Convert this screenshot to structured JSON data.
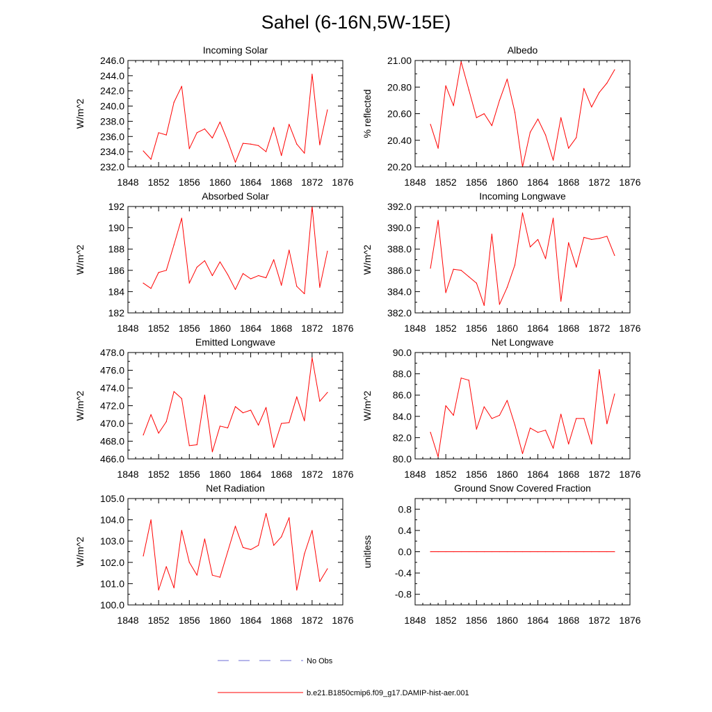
{
  "figure": {
    "title": "Sahel (6-16N,5W-15E)",
    "legend": [
      {
        "label": "No Obs",
        "style": "dashed",
        "color": "#6b6bd6"
      },
      {
        "label": "b.e21.B1850cmip6.f09_g17.DAMIP-hist-aer.001",
        "style": "solid",
        "color": "#ff0000"
      }
    ]
  },
  "chart_data": [
    {
      "type": "line",
      "title": "Incoming Solar",
      "ylabel": "W/m^2",
      "xlabel": "",
      "xlim": [
        1848,
        1876
      ],
      "xticks": [
        1848,
        1852,
        1856,
        1860,
        1864,
        1868,
        1872,
        1876
      ],
      "xtick_labels": [
        "1848",
        "1852",
        "1856",
        "1860",
        "1864",
        "1868",
        "1872",
        "1876"
      ],
      "ylim": [
        232,
        246
      ],
      "yticks": [
        232,
        234,
        236,
        238,
        240,
        242,
        244,
        246
      ],
      "ytick_labels": [
        "232.0",
        "234.0",
        "236.0",
        "238.0",
        "240.0",
        "242.0",
        "244.0",
        "246.0"
      ],
      "x": [
        1850,
        1851,
        1852,
        1853,
        1854,
        1855,
        1856,
        1857,
        1858,
        1859,
        1860,
        1861,
        1862,
        1863,
        1864,
        1865,
        1866,
        1867,
        1868,
        1869,
        1870,
        1871,
        1872,
        1873,
        1874
      ],
      "series": [
        {
          "color": "#ff0000",
          "values": [
            234.1,
            233.0,
            236.5,
            236.2,
            240.5,
            242.6,
            234.4,
            236.5,
            237.0,
            235.8,
            237.9,
            235.4,
            232.6,
            235.1,
            235.0,
            234.8,
            234.0,
            237.2,
            233.5,
            237.6,
            235.0,
            233.8,
            244.2,
            234.9,
            239.5
          ]
        }
      ],
      "grid": false
    },
    {
      "type": "line",
      "title": "Albedo",
      "ylabel": "% reflected",
      "xlabel": "",
      "xlim": [
        1848,
        1876
      ],
      "xticks": [
        1848,
        1852,
        1856,
        1860,
        1864,
        1868,
        1872,
        1876
      ],
      "xtick_labels": [
        "1848",
        "1852",
        "1856",
        "1860",
        "1864",
        "1868",
        "1872",
        "1876"
      ],
      "ylim": [
        20.2,
        21.0
      ],
      "yticks": [
        20.2,
        20.4,
        20.6,
        20.8,
        21.0
      ],
      "ytick_labels": [
        "20.20",
        "20.40",
        "20.60",
        "20.80",
        "21.00"
      ],
      "x": [
        1850,
        1851,
        1852,
        1853,
        1854,
        1855,
        1856,
        1857,
        1858,
        1859,
        1860,
        1861,
        1862,
        1863,
        1864,
        1865,
        1866,
        1867,
        1868,
        1869,
        1870,
        1871,
        1872,
        1873,
        1874
      ],
      "series": [
        {
          "color": "#ff0000",
          "values": [
            20.52,
            20.34,
            20.81,
            20.66,
            20.99,
            20.78,
            20.57,
            20.6,
            20.51,
            20.7,
            20.86,
            20.61,
            20.2,
            20.46,
            20.56,
            20.44,
            20.25,
            20.57,
            20.34,
            20.42,
            20.79,
            20.65,
            20.76,
            20.83,
            20.93
          ]
        }
      ],
      "grid": false
    },
    {
      "type": "line",
      "title": "Absorbed Solar",
      "ylabel": "W/m^2",
      "xlabel": "",
      "xlim": [
        1848,
        1876
      ],
      "xticks": [
        1848,
        1852,
        1856,
        1860,
        1864,
        1868,
        1872,
        1876
      ],
      "xtick_labels": [
        "1848",
        "1852",
        "1856",
        "1860",
        "1864",
        "1868",
        "1872",
        "1876"
      ],
      "ylim": [
        182,
        192
      ],
      "yticks": [
        182,
        184,
        186,
        188,
        190,
        192
      ],
      "ytick_labels": [
        "182",
        "184",
        "186",
        "188",
        "190",
        "192"
      ],
      "x": [
        1850,
        1851,
        1852,
        1853,
        1854,
        1855,
        1856,
        1857,
        1858,
        1859,
        1860,
        1861,
        1862,
        1863,
        1864,
        1865,
        1866,
        1867,
        1868,
        1869,
        1870,
        1871,
        1872,
        1873,
        1874
      ],
      "series": [
        {
          "color": "#ff0000",
          "values": [
            184.8,
            184.3,
            185.8,
            186.0,
            188.4,
            190.9,
            184.8,
            186.3,
            186.9,
            185.5,
            186.8,
            185.6,
            184.2,
            185.7,
            185.2,
            185.5,
            185.3,
            187.0,
            184.6,
            187.9,
            184.5,
            183.8,
            192.0,
            184.4,
            187.8
          ]
        }
      ],
      "grid": false
    },
    {
      "type": "line",
      "title": "Incoming Longwave",
      "ylabel": "W/m^2",
      "xlabel": "",
      "xlim": [
        1848,
        1876
      ],
      "xticks": [
        1848,
        1852,
        1856,
        1860,
        1864,
        1868,
        1872,
        1876
      ],
      "xtick_labels": [
        "1848",
        "1852",
        "1856",
        "1860",
        "1864",
        "1868",
        "1872",
        "1876"
      ],
      "ylim": [
        382,
        392
      ],
      "yticks": [
        382,
        384,
        386,
        388,
        390,
        392
      ],
      "ytick_labels": [
        "382.0",
        "384.0",
        "386.0",
        "388.0",
        "390.0",
        "392.0"
      ],
      "x": [
        1850,
        1851,
        1852,
        1853,
        1854,
        1855,
        1856,
        1857,
        1858,
        1859,
        1860,
        1861,
        1862,
        1863,
        1864,
        1865,
        1866,
        1867,
        1868,
        1869,
        1870,
        1871,
        1872,
        1873,
        1874
      ],
      "series": [
        {
          "color": "#ff0000",
          "values": [
            386.2,
            390.7,
            383.9,
            386.1,
            386.0,
            385.4,
            384.8,
            382.7,
            389.4,
            382.8,
            384.4,
            386.5,
            391.4,
            388.2,
            388.9,
            387.1,
            390.9,
            383.1,
            388.6,
            386.3,
            389.1,
            388.9,
            389.0,
            389.2,
            387.4
          ]
        }
      ],
      "grid": false
    },
    {
      "type": "line",
      "title": "Emitted Longwave",
      "ylabel": "W/m^2",
      "xlabel": "",
      "xlim": [
        1848,
        1876
      ],
      "xticks": [
        1848,
        1852,
        1856,
        1860,
        1864,
        1868,
        1872,
        1876
      ],
      "xtick_labels": [
        "1848",
        "1852",
        "1856",
        "1860",
        "1864",
        "1868",
        "1872",
        "1876"
      ],
      "ylim": [
        466,
        478
      ],
      "yticks": [
        466,
        468,
        470,
        472,
        474,
        476,
        478
      ],
      "ytick_labels": [
        "466.0",
        "468.0",
        "470.0",
        "472.0",
        "474.0",
        "476.0",
        "478.0"
      ],
      "x": [
        1850,
        1851,
        1852,
        1853,
        1854,
        1855,
        1856,
        1857,
        1858,
        1859,
        1860,
        1861,
        1862,
        1863,
        1864,
        1865,
        1866,
        1867,
        1868,
        1869,
        1870,
        1871,
        1872,
        1873,
        1874
      ],
      "series": [
        {
          "color": "#ff0000",
          "values": [
            468.7,
            471.0,
            468.9,
            470.2,
            473.6,
            472.8,
            467.5,
            467.6,
            473.2,
            466.8,
            469.7,
            469.5,
            471.9,
            471.2,
            471.5,
            469.8,
            471.8,
            467.3,
            470.0,
            470.1,
            473.0,
            470.3,
            477.4,
            472.5,
            473.5
          ]
        }
      ],
      "grid": false
    },
    {
      "type": "line",
      "title": "Net Longwave",
      "ylabel": "W/m^2",
      "xlabel": "",
      "xlim": [
        1848,
        1876
      ],
      "xticks": [
        1848,
        1852,
        1856,
        1860,
        1864,
        1868,
        1872,
        1876
      ],
      "xtick_labels": [
        "1848",
        "1852",
        "1856",
        "1860",
        "1864",
        "1868",
        "1872",
        "1876"
      ],
      "ylim": [
        80,
        90
      ],
      "yticks": [
        80,
        82,
        84,
        86,
        88,
        90
      ],
      "ytick_labels": [
        "80.0",
        "82.0",
        "84.0",
        "86.0",
        "88.0",
        "90.0"
      ],
      "x": [
        1850,
        1851,
        1852,
        1853,
        1854,
        1855,
        1856,
        1857,
        1858,
        1859,
        1860,
        1861,
        1862,
        1863,
        1864,
        1865,
        1866,
        1867,
        1868,
        1869,
        1870,
        1871,
        1872,
        1873,
        1874
      ],
      "series": [
        {
          "color": "#ff0000",
          "values": [
            82.5,
            80.2,
            85.0,
            84.1,
            87.6,
            87.4,
            82.8,
            84.9,
            83.8,
            84.1,
            85.5,
            83.2,
            80.5,
            82.9,
            82.5,
            82.7,
            81.0,
            84.2,
            81.4,
            83.8,
            83.8,
            81.4,
            88.4,
            83.3,
            86.1
          ]
        }
      ],
      "grid": false
    },
    {
      "type": "line",
      "title": "Net Radiation",
      "ylabel": "W/m^2",
      "xlabel": "",
      "xlim": [
        1848,
        1876
      ],
      "xticks": [
        1848,
        1852,
        1856,
        1860,
        1864,
        1868,
        1872,
        1876
      ],
      "xtick_labels": [
        "1848",
        "1852",
        "1856",
        "1860",
        "1864",
        "1868",
        "1872",
        "1876"
      ],
      "ylim": [
        100,
        105
      ],
      "yticks": [
        100,
        101,
        102,
        103,
        104,
        105
      ],
      "ytick_labels": [
        "100.0",
        "101.0",
        "102.0",
        "103.0",
        "104.0",
        "105.0"
      ],
      "x": [
        1850,
        1851,
        1852,
        1853,
        1854,
        1855,
        1856,
        1857,
        1858,
        1859,
        1860,
        1861,
        1862,
        1863,
        1864,
        1865,
        1866,
        1867,
        1868,
        1869,
        1870,
        1871,
        1872,
        1873,
        1874
      ],
      "series": [
        {
          "color": "#ff0000",
          "values": [
            102.3,
            104.0,
            100.7,
            101.8,
            100.8,
            103.5,
            102.0,
            101.4,
            103.1,
            101.4,
            101.3,
            102.5,
            103.7,
            102.7,
            102.6,
            102.8,
            104.3,
            102.8,
            103.2,
            104.1,
            100.7,
            102.4,
            103.5,
            101.1,
            101.7
          ]
        }
      ],
      "grid": false
    },
    {
      "type": "line",
      "title": "Ground Snow Covered Fraction",
      "ylabel": "unitless",
      "xlabel": "",
      "xlim": [
        1848,
        1876
      ],
      "xticks": [
        1848,
        1852,
        1856,
        1860,
        1864,
        1868,
        1872,
        1876
      ],
      "xtick_labels": [
        "1848",
        "1852",
        "1856",
        "1860",
        "1864",
        "1868",
        "1872",
        "1876"
      ],
      "ylim": [
        -1.0,
        1.0
      ],
      "yticks": [
        -0.8,
        -0.4,
        0.0,
        0.4,
        0.8
      ],
      "ytick_labels": [
        "-0.8",
        "-0.4",
        "0.0",
        "0.4",
        "0.8"
      ],
      "x": [
        1850,
        1851,
        1852,
        1853,
        1854,
        1855,
        1856,
        1857,
        1858,
        1859,
        1860,
        1861,
        1862,
        1863,
        1864,
        1865,
        1866,
        1867,
        1868,
        1869,
        1870,
        1871,
        1872,
        1873,
        1874
      ],
      "series": [
        {
          "color": "#ff0000",
          "values": [
            0,
            0,
            0,
            0,
            0,
            0,
            0,
            0,
            0,
            0,
            0,
            0,
            0,
            0,
            0,
            0,
            0,
            0,
            0,
            0,
            0,
            0,
            0,
            0,
            0
          ]
        }
      ],
      "grid": false
    }
  ]
}
